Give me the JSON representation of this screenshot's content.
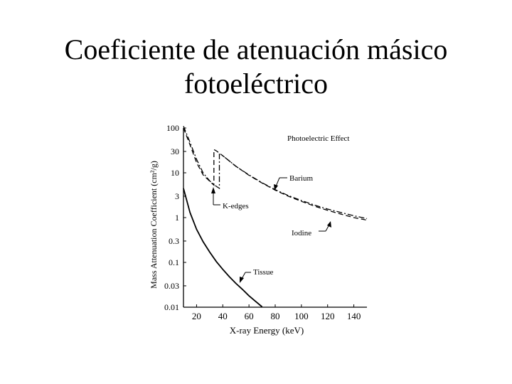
{
  "slide": {
    "title_line1": "Coeficiente de atenuación másico",
    "title_line2": "fotoeléctrico"
  },
  "chart_data": {
    "type": "line",
    "title": "Photoelectric Effect",
    "xlabel": "X-ray Energy (keV)",
    "ylabel": "Mass Attenuation Coefficient (cm²/g)",
    "xlim": [
      10,
      150
    ],
    "ylim": [
      0.01,
      100
    ],
    "yscale": "log",
    "x_ticks": [
      20,
      40,
      60,
      80,
      100,
      120,
      140
    ],
    "y_ticks": [
      {
        "value": 100,
        "label": "100"
      },
      {
        "value": 30,
        "label": "30"
      },
      {
        "value": 10,
        "label": "10"
      },
      {
        "value": 3,
        "label": "3"
      },
      {
        "value": 1,
        "label": "1"
      },
      {
        "value": 0.3,
        "label": "0.3"
      },
      {
        "value": 0.1,
        "label": "0.1"
      },
      {
        "value": 0.03,
        "label": "0.03"
      },
      {
        "value": 0.01,
        "label": "0.01"
      }
    ],
    "grid": false,
    "series": [
      {
        "name": "Barium",
        "style": "dash-dot",
        "x": [
          10,
          15,
          20,
          25,
          30,
          35,
          37.4,
          37.4,
          40,
          50,
          60,
          70,
          80,
          90,
          100,
          110,
          120,
          130,
          140,
          150
        ],
        "y": [
          110,
          48,
          20,
          10,
          6.6,
          5.0,
          4.5,
          26,
          24,
          14,
          9.0,
          6.0,
          4.2,
          3.1,
          2.4,
          1.9,
          1.55,
          1.3,
          1.1,
          0.95
        ]
      },
      {
        "name": "Iodine",
        "style": "dashed",
        "x": [
          10,
          15,
          20,
          25,
          30,
          33.2,
          33.2,
          35,
          40,
          50,
          60,
          70,
          80,
          90,
          100,
          110,
          120,
          130,
          140,
          150
        ],
        "y": [
          100,
          42,
          17,
          9.0,
          6.5,
          5.3,
          33,
          31,
          24,
          14,
          8.8,
          5.9,
          4.1,
          3.0,
          2.3,
          1.8,
          1.45,
          1.2,
          1.0,
          0.88
        ]
      },
      {
        "name": "Tissue",
        "style": "solid",
        "x": [
          10,
          15,
          20,
          25,
          30,
          35,
          40,
          45,
          50,
          55,
          60,
          65,
          70
        ],
        "y": [
          4.5,
          1.3,
          0.55,
          0.29,
          0.17,
          0.105,
          0.07,
          0.048,
          0.034,
          0.025,
          0.018,
          0.0135,
          0.0102
        ]
      }
    ],
    "annotations": [
      {
        "text": "Barium",
        "points_to": "Barium"
      },
      {
        "text": "Iodine",
        "points_to": "Iodine"
      },
      {
        "text": "K-edges",
        "points_to": "k-edges"
      },
      {
        "text": "Tissue",
        "points_to": "Tissue"
      }
    ]
  }
}
